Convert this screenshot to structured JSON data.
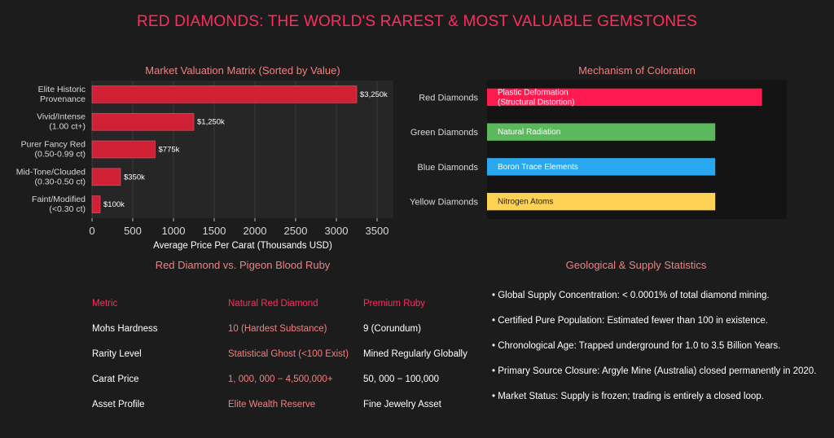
{
  "title": "RED DIAMONDS: THE WORLD'S RAREST & MOST VALUABLE GEMSTONES",
  "colors": {
    "accent": "#ff2e5e",
    "subtitle": "#f08080",
    "bar": "#d02033"
  },
  "chart_data": [
    {
      "type": "bar",
      "orientation": "horizontal",
      "title": "Market Valuation Matrix (Sorted by Value)",
      "xlabel": "Average Price Per Carat (Thousands USD)",
      "ylabel": "",
      "categories": [
        [
          "Elite Historic",
          "Provenance"
        ],
        [
          "Vivid/Intense",
          "(1.00 ct+)"
        ],
        [
          "Purer Fancy Red",
          "(0.50-0.99 ct)"
        ],
        [
          "Mid-Tone/Clouded",
          "(0.30-0.50 ct)"
        ],
        [
          "Faint/Modified",
          "(<0.30 ct)"
        ]
      ],
      "values": [
        3250,
        1250,
        775,
        350,
        100
      ],
      "data_labels": [
        "$3,250k",
        "$1,250k",
        "$775k",
        "$350k",
        "$100k"
      ],
      "xlim": [
        0,
        3700
      ],
      "xticks": [
        0,
        500,
        1000,
        1500,
        2000,
        2500,
        3000,
        3500
      ],
      "grid": true
    },
    {
      "type": "bar",
      "orientation": "horizontal",
      "title": "Mechanism of Coloration",
      "categories": [
        "Red Diamonds",
        "Green Diamonds",
        "Blue Diamonds",
        "Yellow Diamonds"
      ],
      "values": [
        1.0,
        0.83,
        0.83,
        0.83
      ],
      "bar_labels": [
        [
          "Plastic Deformation",
          "(Structural Distortion)"
        ],
        [
          "Natural Radiation"
        ],
        [
          "Boron Trace Elements"
        ],
        [
          "Nitrogen Atoms"
        ]
      ],
      "colors": [
        "#ff1a4f",
        "#5cb85c",
        "#29a8f0",
        "#fdd255"
      ],
      "xlim": [
        0,
        1.09
      ]
    }
  ],
  "comparison": {
    "title": "Red Diamond vs. Pigeon Blood Ruby",
    "headers": [
      "Metric",
      "Natural Red Diamond",
      "Premium Ruby"
    ],
    "rows": [
      [
        "Mohs Hardness",
        "10 (Hardest Substance)",
        "9 (Corundum)"
      ],
      [
        "Rarity Level",
        "Statistical Ghost (<100 Exist)",
        "Mined Regularly Globally"
      ],
      [
        "Carat Price",
        "1, 000, 000 − 4,500,000+",
        "50, 000 − 100,000"
      ],
      [
        "Asset Profile",
        "Elite Wealth Reserve",
        "Fine Jewelry Asset"
      ]
    ]
  },
  "stats": {
    "title": "Geological & Supply Statistics",
    "items": [
      "• Global Supply Concentration: < 0.0001% of total diamond mining.",
      "• Certified Pure Population: Estimated fewer than 100 in existence.",
      "• Chronological Age: Trapped underground for 1.0 to 3.5 Billion Years.",
      "• Primary Source Closure: Argyle Mine (Australia) closed permanently in 2020.",
      "• Market Status: Supply is frozen; trading is entirely a closed loop."
    ]
  }
}
